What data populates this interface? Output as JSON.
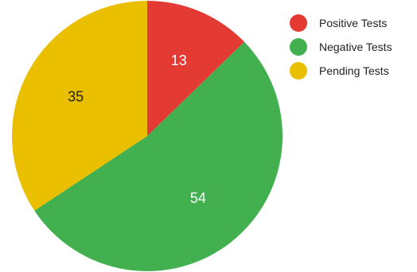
{
  "chart_data": {
    "type": "pie",
    "title": "",
    "series": [
      {
        "name": "Positive Tests",
        "value": 13,
        "color": "#e33a33",
        "label_color": "#ffffff"
      },
      {
        "name": "Negative Tests",
        "value": 54,
        "color": "#42b04f",
        "label_color": "#ffffff"
      },
      {
        "name": "Pending Tests",
        "value": 35,
        "color": "#eabf00",
        "label_color": "#222222"
      }
    ],
    "legend_position": "top-right",
    "start_angle": "12 o'clock",
    "direction": "clockwise"
  }
}
